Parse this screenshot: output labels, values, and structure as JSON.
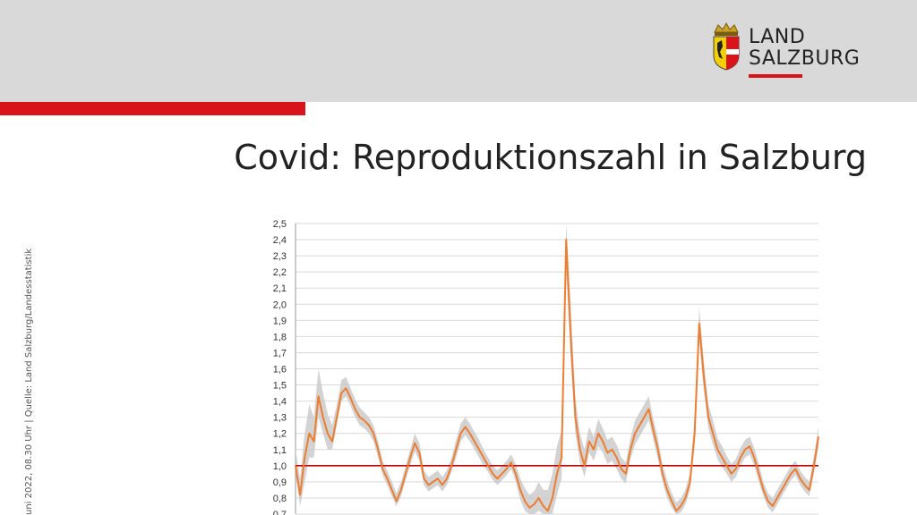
{
  "header": {
    "logo": {
      "line1": "LAND",
      "line2": "SALZBURG",
      "name": "coat-of-arms-icon",
      "accent": "#d8141a"
    }
  },
  "title": "Covid: Reproduktionszahl in Salzburg",
  "side_note": "uni 2022, 08.30 Uhr | Quelle: Land Salzburg/Landesstatistik",
  "colors": {
    "series": "#ed7d31",
    "band": "#c8c8c8",
    "reference": "#c00000",
    "grid": "#d9d9d9"
  },
  "chart_data": {
    "type": "line",
    "title": "",
    "xlabel": "",
    "ylabel": "",
    "ylim": [
      0.7,
      2.5
    ],
    "yticks": [
      "0,7",
      "0,8",
      "0,9",
      "1,0",
      "1,1",
      "1,2",
      "1,3",
      "1,4",
      "1,5",
      "1,6",
      "1,7",
      "1,8",
      "1,9",
      "2,0",
      "2,1",
      "2,2",
      "2,3",
      "2,4",
      "2,5"
    ],
    "grid": true,
    "legend": "none",
    "reference_line": 1.0,
    "series": [
      {
        "values": [
          1.0,
          0.82,
          1.05,
          1.2,
          1.15,
          1.43,
          1.3,
          1.2,
          1.15,
          1.3,
          1.45,
          1.48,
          1.42,
          1.35,
          1.3,
          1.28,
          1.25,
          1.2,
          1.1,
          0.98,
          0.92,
          0.85,
          0.78,
          0.85,
          0.95,
          1.05,
          1.14,
          1.08,
          0.92,
          0.88,
          0.9,
          0.92,
          0.88,
          0.92,
          1.0,
          1.1,
          1.2,
          1.24,
          1.2,
          1.15,
          1.1,
          1.05,
          1.0,
          0.95,
          0.92,
          0.95,
          0.98,
          1.02,
          0.95,
          0.85,
          0.78,
          0.74,
          0.76,
          0.8,
          0.75,
          0.72,
          0.8,
          0.95,
          1.05,
          2.4,
          1.8,
          1.3,
          1.1,
          1.0,
          1.15,
          1.1,
          1.2,
          1.15,
          1.08,
          1.1,
          1.05,
          0.98,
          0.95,
          1.1,
          1.2,
          1.25,
          1.3,
          1.35,
          1.22,
          1.1,
          0.95,
          0.85,
          0.78,
          0.72,
          0.75,
          0.8,
          0.9,
          1.2,
          1.88,
          1.55,
          1.3,
          1.2,
          1.1,
          1.05,
          1.0,
          0.95,
          0.98,
          1.05,
          1.1,
          1.12,
          1.05,
          0.95,
          0.85,
          0.78,
          0.75,
          0.8,
          0.85,
          0.9,
          0.95,
          0.98,
          0.92,
          0.88,
          0.85,
          1.0,
          1.18
        ],
        "band_low": [
          0.95,
          0.75,
          0.9,
          1.05,
          1.05,
          1.3,
          1.2,
          1.1,
          1.1,
          1.25,
          1.4,
          1.43,
          1.37,
          1.3,
          1.25,
          1.23,
          1.2,
          1.15,
          1.05,
          0.94,
          0.88,
          0.81,
          0.75,
          0.81,
          0.91,
          1.0,
          1.09,
          1.03,
          0.88,
          0.84,
          0.86,
          0.88,
          0.84,
          0.88,
          0.96,
          1.05,
          1.15,
          1.19,
          1.15,
          1.1,
          1.05,
          1.0,
          0.96,
          0.91,
          0.88,
          0.91,
          0.94,
          0.98,
          0.9,
          0.79,
          0.72,
          0.7,
          0.7,
          0.72,
          0.7,
          0.7,
          0.7,
          0.82,
          0.92,
          2.2,
          1.65,
          1.2,
          1.02,
          0.93,
          1.08,
          1.03,
          1.12,
          1.08,
          1.01,
          1.03,
          0.98,
          0.92,
          0.89,
          1.04,
          1.13,
          1.18,
          1.23,
          1.28,
          1.16,
          1.04,
          0.9,
          0.8,
          0.74,
          0.7,
          0.71,
          0.76,
          0.85,
          1.12,
          1.78,
          1.46,
          1.23,
          1.13,
          1.04,
          0.99,
          0.95,
          0.9,
          0.93,
          1.0,
          1.05,
          1.07,
          1.0,
          0.9,
          0.81,
          0.74,
          0.71,
          0.76,
          0.81,
          0.86,
          0.91,
          0.94,
          0.88,
          0.84,
          0.81,
          0.95,
          1.12
        ],
        "band_high": [
          1.1,
          0.92,
          1.2,
          1.38,
          1.3,
          1.6,
          1.45,
          1.32,
          1.25,
          1.38,
          1.53,
          1.55,
          1.48,
          1.41,
          1.36,
          1.33,
          1.3,
          1.25,
          1.15,
          1.03,
          0.97,
          0.9,
          0.83,
          0.9,
          1.0,
          1.1,
          1.2,
          1.14,
          0.97,
          0.93,
          0.95,
          0.97,
          0.93,
          0.97,
          1.05,
          1.16,
          1.26,
          1.3,
          1.26,
          1.21,
          1.16,
          1.1,
          1.05,
          1.0,
          0.97,
          1.0,
          1.03,
          1.07,
          1.01,
          0.92,
          0.86,
          0.82,
          0.84,
          0.9,
          0.85,
          0.85,
          0.95,
          1.12,
          1.22,
          2.5,
          1.98,
          1.42,
          1.2,
          1.1,
          1.24,
          1.18,
          1.29,
          1.23,
          1.16,
          1.18,
          1.13,
          1.05,
          1.02,
          1.17,
          1.28,
          1.33,
          1.38,
          1.43,
          1.29,
          1.17,
          1.01,
          0.91,
          0.83,
          0.77,
          0.8,
          0.85,
          0.96,
          1.29,
          1.98,
          1.65,
          1.38,
          1.28,
          1.17,
          1.12,
          1.06,
          1.01,
          1.04,
          1.11,
          1.16,
          1.18,
          1.11,
          1.01,
          0.9,
          0.83,
          0.8,
          0.85,
          0.9,
          0.95,
          1.0,
          1.03,
          0.97,
          0.93,
          0.9,
          1.06,
          1.24
        ]
      }
    ]
  }
}
